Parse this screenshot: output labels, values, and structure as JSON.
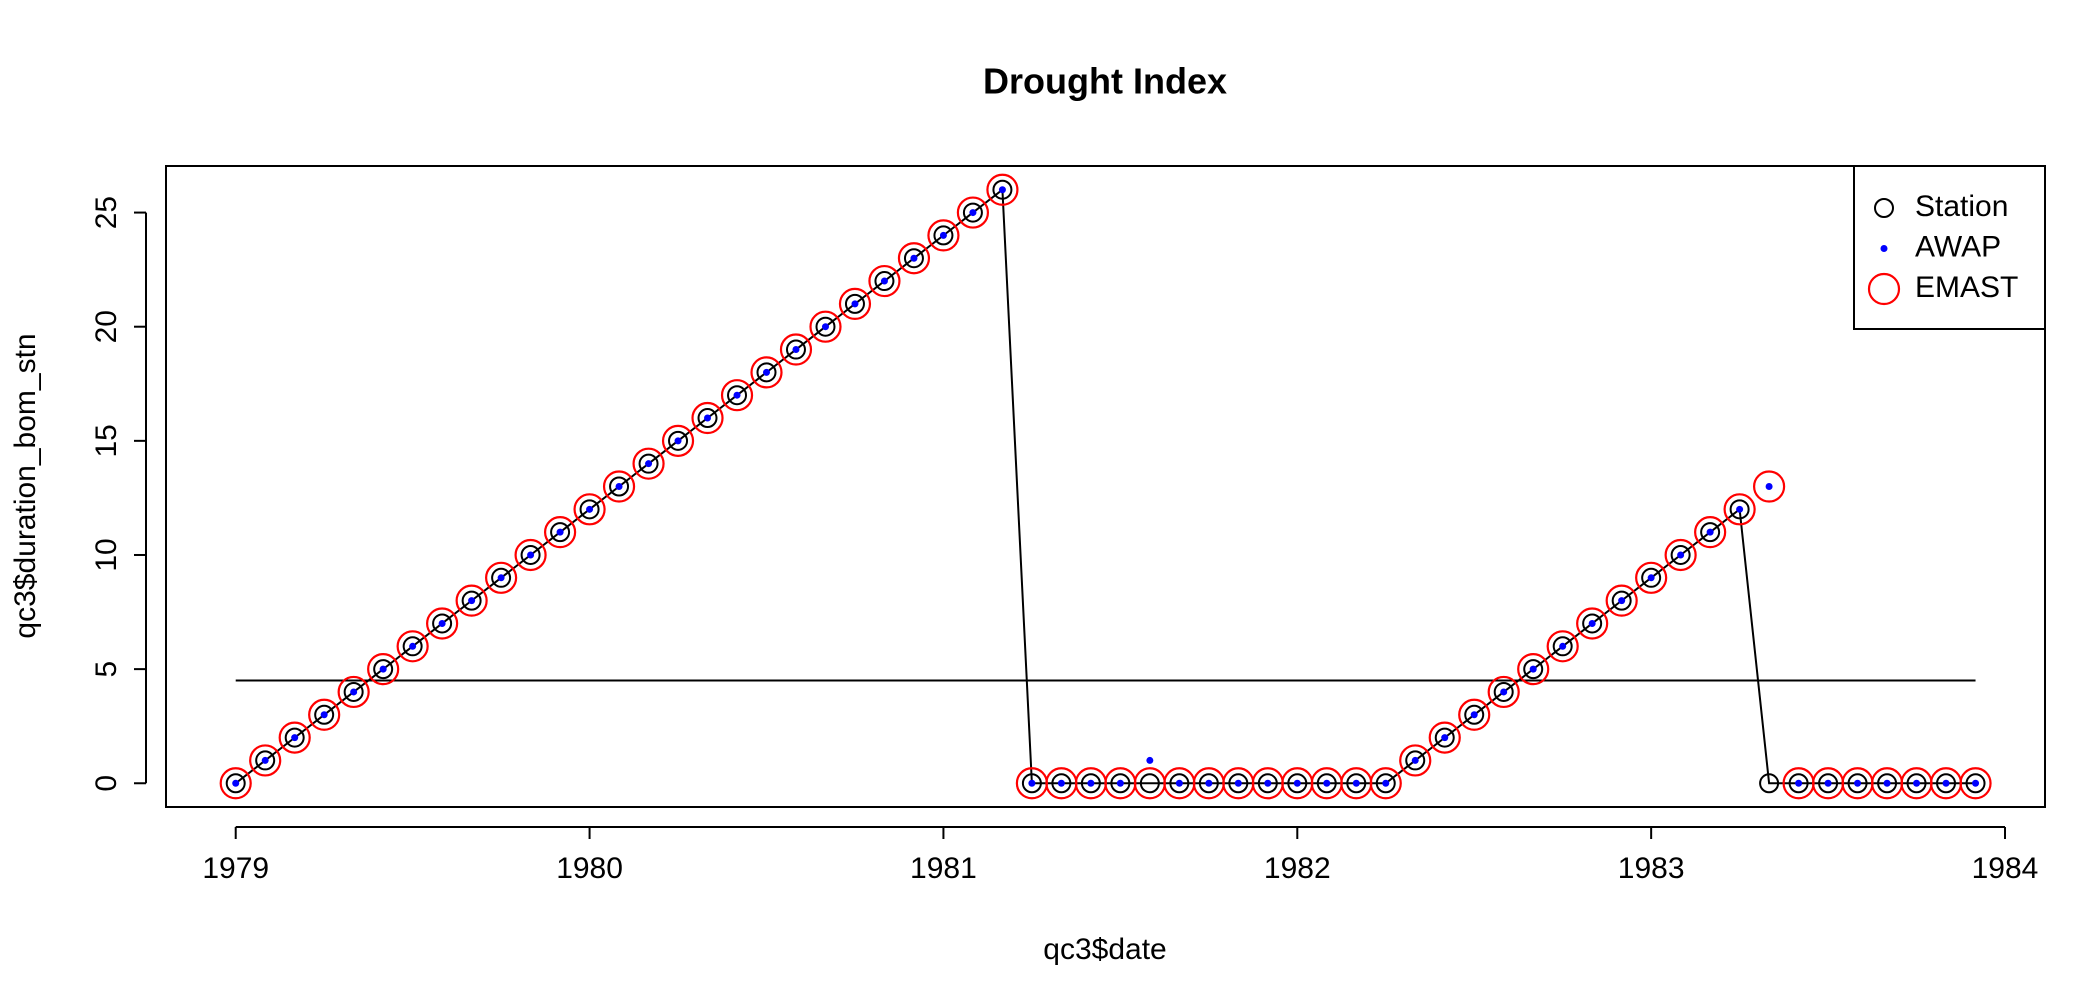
{
  "chart_data": {
    "type": "scatter",
    "title": "Drought Index",
    "x_label": "qc3$date",
    "y_label": "qc3$duration_bom_stn",
    "x": [
      1979,
      1979.0833,
      1979.1667,
      1979.25,
      1979.3333,
      1979.4167,
      1979.5,
      1979.5833,
      1979.6667,
      1979.75,
      1979.8333,
      1979.9167,
      1980,
      1980.0833,
      1980.1667,
      1980.25,
      1980.3333,
      1980.4167,
      1980.5,
      1980.5833,
      1980.6667,
      1980.75,
      1980.8333,
      1980.9167,
      1981,
      1981.0833,
      1981.1667,
      1981.25,
      1981.3333,
      1981.4167,
      1981.5,
      1981.5833,
      1981.6667,
      1981.75,
      1981.8333,
      1981.9167,
      1982,
      1982.0833,
      1982.1667,
      1982.25,
      1982.3333,
      1982.4167,
      1982.5,
      1982.5833,
      1982.6667,
      1982.75,
      1982.8333,
      1982.9167,
      1983,
      1983.0833,
      1983.1667,
      1983.25,
      1983.3333,
      1983.4167,
      1983.5,
      1983.5833,
      1983.6667,
      1983.75,
      1983.8333,
      1983.9167
    ],
    "series": [
      {
        "name": "Station",
        "color": "#000000",
        "marker": "open-circle",
        "line": true,
        "values": [
          0,
          1,
          2,
          3,
          4,
          5,
          6,
          7,
          8,
          9,
          10,
          11,
          12,
          13,
          14,
          15,
          16,
          17,
          18,
          19,
          20,
          21,
          22,
          23,
          24,
          25,
          26,
          0,
          0,
          0,
          0,
          0,
          0,
          0,
          0,
          0,
          0,
          0,
          0,
          0,
          1,
          2,
          3,
          4,
          5,
          6,
          7,
          8,
          9,
          10,
          11,
          12,
          0,
          0,
          0,
          0,
          0,
          0,
          0,
          0
        ]
      },
      {
        "name": "AWAP",
        "color": "#0000ff",
        "marker": "dot",
        "line": false,
        "values": [
          0,
          1,
          2,
          3,
          4,
          5,
          6,
          7,
          8,
          9,
          10,
          11,
          12,
          13,
          14,
          15,
          16,
          17,
          18,
          19,
          20,
          21,
          22,
          23,
          24,
          25,
          26,
          0,
          0,
          0,
          0,
          1,
          0,
          0,
          0,
          0,
          0,
          0,
          0,
          0,
          1,
          2,
          3,
          4,
          5,
          6,
          7,
          8,
          9,
          10,
          11,
          12,
          13,
          0,
          0,
          0,
          0,
          0,
          0,
          0
        ]
      },
      {
        "name": "EMAST",
        "color": "#ff0000",
        "marker": "big-circle",
        "line": false,
        "values": [
          0,
          1,
          2,
          3,
          4,
          5,
          6,
          7,
          8,
          9,
          10,
          11,
          12,
          13,
          14,
          15,
          16,
          17,
          18,
          19,
          20,
          21,
          22,
          23,
          24,
          25,
          26,
          0,
          0,
          0,
          0,
          0,
          0,
          0,
          0,
          0,
          0,
          0,
          0,
          0,
          1,
          2,
          3,
          4,
          5,
          6,
          7,
          8,
          9,
          10,
          11,
          12,
          13,
          0,
          0,
          0,
          0,
          0,
          0,
          0
        ]
      }
    ],
    "reference_line": {
      "y": 4.5,
      "x": [
        1979,
        1983.9167
      ],
      "color": "#000000"
    },
    "xlim": [
      1978.803,
      1984.113
    ],
    "xticks": [
      1979,
      1980,
      1981,
      1982,
      1983,
      1984
    ],
    "ylim": [
      -1.04,
      27.04
    ],
    "yticks": [
      0,
      5,
      10,
      15,
      20,
      25
    ],
    "legend": "top-right"
  }
}
